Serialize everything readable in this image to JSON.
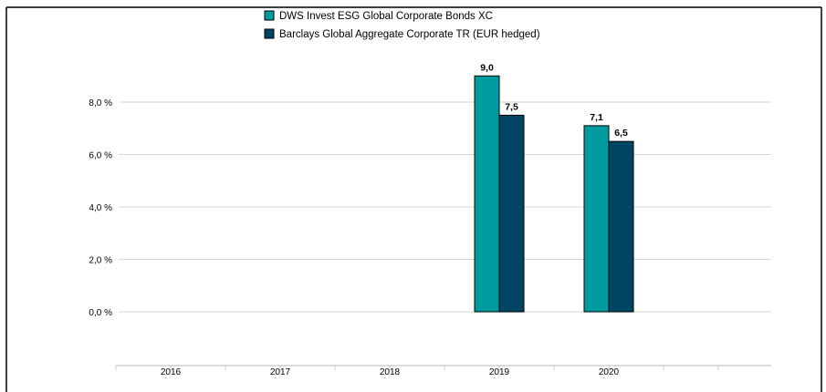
{
  "chart_data": {
    "type": "bar",
    "categories": [
      "2016",
      "2017",
      "2018",
      "2019",
      "2020"
    ],
    "series": [
      {
        "name": "DWS Invest ESG Global Corporate Bonds  XC",
        "values": [
          null,
          null,
          null,
          9.0,
          7.1
        ],
        "labels": [
          "",
          "",
          "",
          "9,0",
          "7,1"
        ],
        "color": "#009b9e"
      },
      {
        "name": "Barclays Global Aggregate Corporate TR (EUR hedged)",
        "values": [
          null,
          null,
          null,
          7.5,
          6.5
        ],
        "labels": [
          "",
          "",
          "",
          "7,5",
          "6,5"
        ],
        "color": "#004563"
      }
    ],
    "yticks": [
      0,
      2,
      4,
      6,
      8
    ],
    "ytick_labels": [
      "0,0 %",
      "2,0 %",
      "4,0 %",
      "6,0 %",
      "8,0 %"
    ],
    "ylim": [
      0,
      10
    ],
    "grid": true,
    "legend_position": "top-center",
    "border_color": "#000000"
  }
}
